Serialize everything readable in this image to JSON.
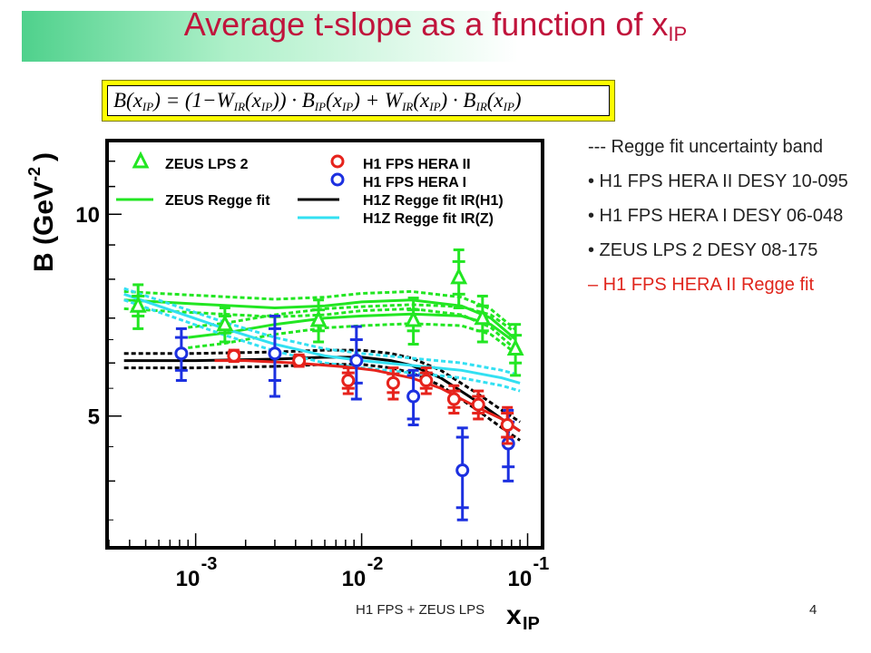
{
  "slide": {
    "title": "Average t-slope as a function of x",
    "title_sub": "IP",
    "formula": {
      "p1": "B(x",
      "p2": ") = (1−W",
      "p3": "(x",
      "p4": ")) · B",
      "p5": "(x",
      "p6": ") + W",
      "p7": "(x",
      "p8": ") · B",
      "p9": "(x",
      "p10": ")",
      "sub_ip": "IP",
      "sub_ir": "IR"
    },
    "notes": [
      {
        "text": "---  Regge fit uncertainty band"
      },
      {
        "text": "• H1 FPS HERA II DESY 10-095"
      },
      {
        "text": "• H1 FPS HERA I DESY 06-048"
      },
      {
        "text": "• ZEUS LPS 2 DESY 08-175"
      },
      {
        "text": "– H1 FPS HERA II Regge fit",
        "color": "#e0251c"
      }
    ],
    "footer": "H1 FPS + ZEUS LPS",
    "page_number": "4"
  },
  "chart_data": {
    "type": "scatter",
    "xscale": "log",
    "yscale": "log",
    "xlim": [
      0.0003,
      0.12
    ],
    "ylim": [
      3.2,
      12.8
    ],
    "xlabel": "x",
    "xlabel_sub": "IP",
    "ylabel": "B (GeV",
    "ylabel_sup": "-2",
    "ylabel_close": ")",
    "xticks": [
      {
        "value": 0.001,
        "base": "10",
        "exp": "-3"
      },
      {
        "value": 0.01,
        "base": "10",
        "exp": "-2"
      },
      {
        "value": 0.1,
        "base": "10",
        "exp": "-1"
      }
    ],
    "yticks": [
      {
        "value": 5,
        "label": "5"
      },
      {
        "value": 10,
        "label": "10"
      }
    ],
    "legend": [
      {
        "label": "ZEUS LPS 2",
        "marker": "triangle",
        "color": "#22e622"
      },
      {
        "label": "ZEUS Regge fit",
        "marker": "line",
        "color": "#22e622"
      },
      {
        "label": "H1 FPS HERA II",
        "marker": "circle",
        "color": "#e6231c"
      },
      {
        "label": "H1 FPS HERA I",
        "marker": "circle",
        "color": "#1c30e0"
      },
      {
        "label": "H1Z Regge fit IR(H1)",
        "marker": "line",
        "color": "#000000"
      },
      {
        "label": "H1Z Regge fit IR(Z)",
        "marker": "line",
        "color": "#33e0f2"
      }
    ],
    "series": [
      {
        "name": "ZEUS LPS 2",
        "marker": "triangle",
        "color": "#22e622",
        "points": [
          {
            "x": 0.00045,
            "y": 7.3,
            "err_stat": 0.25,
            "err_tot": 0.55
          },
          {
            "x": 0.0015,
            "y": 6.85,
            "err_stat": 0.2,
            "err_tot": 0.4
          },
          {
            "x": 0.0055,
            "y": 6.95,
            "err_stat": 0.25,
            "err_tot": 0.5
          },
          {
            "x": 0.0205,
            "y": 6.95,
            "err_stat": 0.25,
            "err_tot": 0.55
          },
          {
            "x": 0.0385,
            "y": 8.05,
            "err_stat": 0.45,
            "err_tot": 0.8
          },
          {
            "x": 0.0535,
            "y": 7.0,
            "err_stat": 0.3,
            "err_tot": 0.55
          },
          {
            "x": 0.0845,
            "y": 6.3,
            "err_stat": 0.3,
            "err_tot": 0.55
          }
        ]
      },
      {
        "name": "H1 FPS HERA I",
        "marker": "circle",
        "color": "#1c30e0",
        "points": [
          {
            "x": 0.00082,
            "y": 6.2,
            "err_stat": 0.35,
            "err_tot": 0.55
          },
          {
            "x": 0.003,
            "y": 6.2,
            "err_stat": 0.55,
            "err_tot": 0.85
          },
          {
            "x": 0.0093,
            "y": 6.05,
            "err_stat": 0.45,
            "err_tot": 0.75
          },
          {
            "x": 0.0205,
            "y": 5.35,
            "err_stat": 0.4,
            "err_tot": 0.5
          },
          {
            "x": 0.0405,
            "y": 4.15,
            "err_stat": 0.5,
            "err_tot": 0.65
          },
          {
            "x": 0.0765,
            "y": 4.55,
            "err_stat": 0.35,
            "err_tot": 0.55
          }
        ]
      },
      {
        "name": "H1 FPS HERA II",
        "marker": "circle",
        "color": "#e6231c",
        "points": [
          {
            "x": 0.0017,
            "y": 6.15,
            "err_stat": 0.08,
            "err_tot": 0.12
          },
          {
            "x": 0.0042,
            "y": 6.05,
            "err_stat": 0.08,
            "err_tot": 0.12
          },
          {
            "x": 0.0083,
            "y": 5.65,
            "err_stat": 0.15,
            "err_tot": 0.25
          },
          {
            "x": 0.0155,
            "y": 5.6,
            "err_stat": 0.18,
            "err_tot": 0.3
          },
          {
            "x": 0.0245,
            "y": 5.65,
            "err_stat": 0.15,
            "err_tot": 0.25
          },
          {
            "x": 0.036,
            "y": 5.3,
            "err_stat": 0.15,
            "err_tot": 0.25
          },
          {
            "x": 0.0505,
            "y": 5.2,
            "err_stat": 0.15,
            "err_tot": 0.25
          },
          {
            "x": 0.0755,
            "y": 4.85,
            "err_stat": 0.2,
            "err_tot": 0.3
          }
        ]
      }
    ],
    "curves": [
      {
        "name": "ZEUS Regge fit",
        "color": "#22e622",
        "x": [
          0.0009,
          0.0015,
          0.003,
          0.006,
          0.01,
          0.02,
          0.04,
          0.06,
          0.08
        ],
        "y": [
          6.55,
          6.65,
          6.85,
          7.0,
          7.05,
          7.1,
          7.05,
          6.85,
          6.5
        ],
        "band_halfwidth": 0.23
      },
      {
        "name": "ZEUS Regge fit (high x_IP)",
        "color": "#22e622",
        "x": [
          0.00037,
          0.0006,
          0.001,
          0.003,
          0.006,
          0.01,
          0.02,
          0.04,
          0.06,
          0.085
        ],
        "y": [
          7.45,
          7.4,
          7.35,
          7.25,
          7.3,
          7.4,
          7.45,
          7.3,
          7.0,
          6.5
        ],
        "band_halfwidth": 0.22
      },
      {
        "name": "H1Z Regge fit IR(H1)",
        "color": "#000000",
        "x": [
          0.00037,
          0.001,
          0.003,
          0.006,
          0.01,
          0.015,
          0.02,
          0.03,
          0.05,
          0.07,
          0.09
        ],
        "y": [
          6.05,
          6.05,
          6.08,
          6.12,
          6.12,
          6.05,
          5.95,
          5.7,
          5.25,
          4.95,
          4.75
        ],
        "band_halfwidth": 0.15
      },
      {
        "name": "H1Z Regge fit IR(Z)",
        "color": "#33e0f2",
        "x": [
          0.00037,
          0.0007,
          0.0015,
          0.003,
          0.006,
          0.01,
          0.02,
          0.04,
          0.07,
          0.09
        ],
        "y": [
          7.6,
          7.2,
          6.75,
          6.4,
          6.15,
          6.05,
          5.95,
          5.85,
          5.7,
          5.6
        ],
        "band_halfwidth": 0.15
      },
      {
        "name": "H1 FPS HERA II Regge fit",
        "color": "#e6231c",
        "x": [
          0.0013,
          0.002,
          0.004,
          0.008,
          0.012,
          0.02,
          0.03,
          0.05,
          0.07,
          0.09
        ],
        "y": [
          6.05,
          6.05,
          6.0,
          5.92,
          5.85,
          5.7,
          5.5,
          5.15,
          4.95,
          4.75
        ],
        "band_halfwidth": 0
      }
    ]
  }
}
